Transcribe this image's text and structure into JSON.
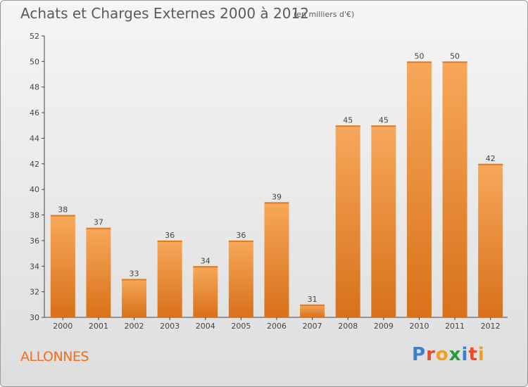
{
  "header": {
    "title": "Achats et Charges Externes 2000 à 2012",
    "unit": "(en milliers d'€)"
  },
  "footer": {
    "place": "ALLONNES",
    "logo_text": "Proxiti",
    "logo_colors": [
      "#3a7fd0",
      "#e84a2a",
      "#f0a020",
      "#2a9a3a",
      "#3a7fd0",
      "#e84a2a",
      "#f0a020"
    ]
  },
  "colors": {
    "bar_top": "#f7a85a",
    "bar_bottom": "#d8711a",
    "axis": "#444444",
    "gridline": "#cfcfcf"
  },
  "chart_data": {
    "type": "bar",
    "title": "Achats et Charges Externes 2000 à 2012",
    "categories": [
      "2000",
      "2001",
      "2002",
      "2003",
      "2004",
      "2005",
      "2006",
      "2007",
      "2008",
      "2009",
      "2010",
      "2011",
      "2012"
    ],
    "values": [
      38,
      37,
      33,
      36,
      34,
      36,
      39,
      31,
      45,
      45,
      50,
      50,
      42
    ],
    "ylim": [
      30,
      52
    ],
    "yticks": [
      30,
      32,
      34,
      36,
      38,
      40,
      42,
      44,
      46,
      48,
      50,
      52
    ],
    "xlabel": "",
    "ylabel": "",
    "grid": false,
    "data_labels": true
  }
}
